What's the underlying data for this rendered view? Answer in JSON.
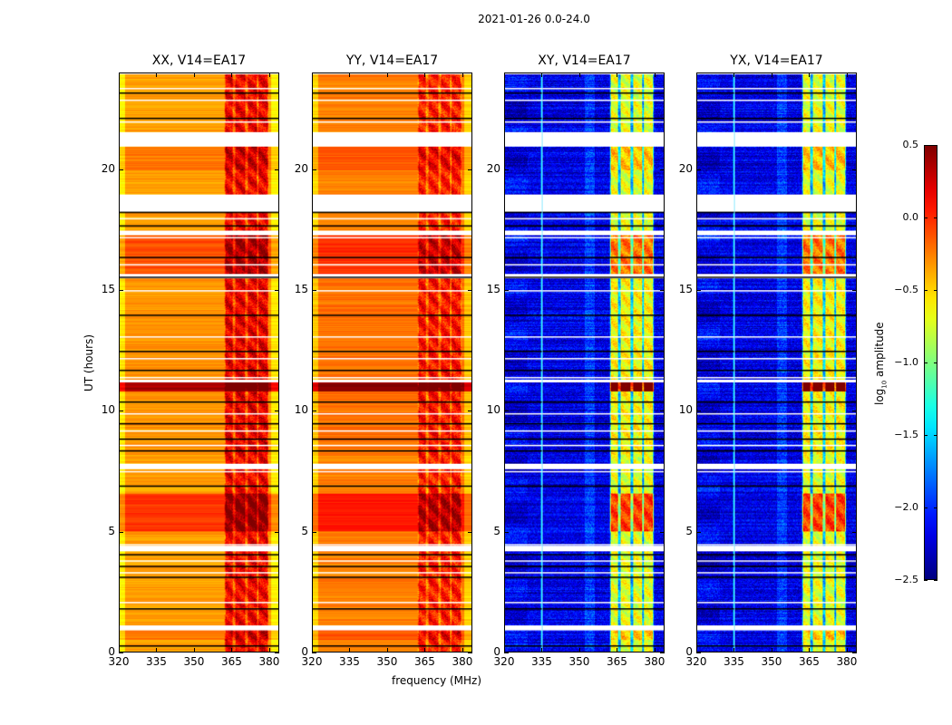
{
  "suptitle": "2021-01-26 0.0-24.0",
  "chart_data": {
    "type": "heatmap",
    "title": "2021-01-26 0.0-24.0",
    "xlabel": "frequency (MHz)",
    "ylabel": "UT (hours)",
    "xlim": [
      320,
      384
    ],
    "ylim": [
      0,
      24
    ],
    "xticks": [
      "320",
      "335",
      "350",
      "365",
      "380"
    ],
    "xtick_values": [
      320,
      335,
      350,
      365,
      380
    ],
    "yticks": [
      "0",
      "5",
      "10",
      "15",
      "20"
    ],
    "ytick_values": [
      0,
      5,
      10,
      15,
      20
    ],
    "colorbar": {
      "label": "log10 amplitude",
      "label_main": "log",
      "label_sub": "10",
      "label_rest": " amplitude",
      "colormap": "jet",
      "range": [
        -2.5,
        0.5
      ],
      "ticks": [
        "0.5",
        "0.0",
        "−0.5",
        "−1.0",
        "−1.5",
        "−2.0",
        "−2.5"
      ],
      "tick_values": [
        0.5,
        0.0,
        -0.5,
        -1.0,
        -1.5,
        -2.0,
        -2.5
      ]
    },
    "rfi_band_mhz": [
      362,
      380
    ],
    "rfi_sub_band_edges_mhz": [
      362,
      366,
      371,
      375.5,
      380
    ],
    "panels": [
      {
        "name": "XX",
        "title": "XX, V14=EA17",
        "kind": "parallel",
        "base_level": -0.35,
        "rfi_level": 0.15
      },
      {
        "name": "YY",
        "title": "YY, V14=EA17",
        "kind": "parallel",
        "base_level": -0.25,
        "rfi_level": 0.05
      },
      {
        "name": "XY",
        "title": "XY, V14=EA17",
        "kind": "cross",
        "base_level": -2.2,
        "rfi_level": -0.7
      },
      {
        "name": "YX",
        "title": "YX, V14=EA17",
        "kind": "cross",
        "base_level": -2.2,
        "rfi_level": -0.7
      }
    ],
    "time_segments_hours": [
      {
        "start": 0.0,
        "end": 0.5,
        "offset": 0.0
      },
      {
        "start": 0.5,
        "end": 0.9,
        "offset": 0.15
      },
      {
        "start": 1.1,
        "end": 2.9,
        "offset": 0.0
      },
      {
        "start": 2.9,
        "end": 4.2,
        "offset": 0.0
      },
      {
        "start": 4.4,
        "end": 5.0,
        "offset": 0.0
      },
      {
        "start": 5.0,
        "end": 6.6,
        "offset": 0.4
      },
      {
        "start": 6.6,
        "end": 7.6,
        "offset": 0.0
      },
      {
        "start": 7.8,
        "end": 8.2,
        "offset": 0.0
      },
      {
        "start": 8.2,
        "end": 10.8,
        "offset": 0.05
      },
      {
        "start": 10.8,
        "end": 11.2,
        "offset": 0.9
      },
      {
        "start": 11.3,
        "end": 15.5,
        "offset": 0.05
      },
      {
        "start": 15.7,
        "end": 17.3,
        "offset": 0.3
      },
      {
        "start": 17.5,
        "end": 18.3,
        "offset": 0.0
      },
      {
        "start": 19.0,
        "end": 20.0,
        "offset": 0.0
      },
      {
        "start": 20.0,
        "end": 21.0,
        "offset": 0.15
      },
      {
        "start": 21.6,
        "end": 23.3,
        "offset": 0.0
      },
      {
        "start": 23.3,
        "end": 24.0,
        "offset": 0.0
      }
    ],
    "gap_lines_hours": [
      0.25,
      0.95,
      1.8,
      2.05,
      3.1,
      3.3,
      3.55,
      3.8,
      4.05,
      4.45,
      6.9,
      7.5,
      8.35,
      8.6,
      8.85,
      9.2,
      9.5,
      9.9,
      10.4,
      11.4,
      11.7,
      12.2,
      12.5,
      13.1,
      14.0,
      15.0,
      15.55,
      16.1,
      16.4,
      17.2,
      17.7,
      18.0,
      18.25,
      22.0,
      22.15,
      22.9,
      23.2,
      23.4
    ]
  }
}
